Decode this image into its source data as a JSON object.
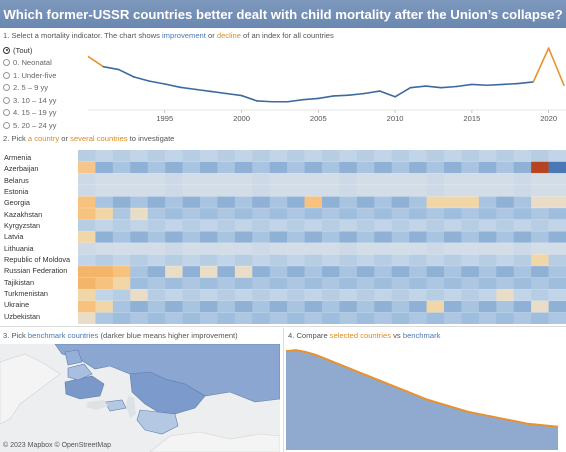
{
  "title": "Which former-USSR countries better dealt with child mortality after the Union’s collapse?",
  "section1": {
    "prefix": "1. Select a mortality indicator. The chart shows ",
    "improvement": "improvement",
    "or": " or ",
    "decline": "decline",
    "suffix": " of an index for all countries"
  },
  "indicators": [
    {
      "label": "(Tout)",
      "selected": true
    },
    {
      "label": "0. Neonatal",
      "selected": false
    },
    {
      "label": "1. Under-five",
      "selected": false
    },
    {
      "label": "2. 5 – 9 yy",
      "selected": false
    },
    {
      "label": "3. 10 – 14 yy",
      "selected": false
    },
    {
      "label": "4. 15 – 19 yy",
      "selected": false
    },
    {
      "label": "5. 20 – 24 yy",
      "selected": false
    }
  ],
  "chart_data": [
    {
      "type": "line",
      "x_ticks": [
        "1995",
        "2000",
        "2005",
        "2010",
        "2015",
        "2020"
      ],
      "xlim": [
        1990,
        2021
      ],
      "x": [
        1990,
        1991,
        1992,
        1993,
        1994,
        1995,
        1996,
        1997,
        1998,
        1999,
        2000,
        2001,
        2002,
        2003,
        2004,
        2005,
        2006,
        2007,
        2008,
        2009,
        2010,
        2011,
        2012,
        2013,
        2014,
        2015,
        2016,
        2017,
        2018,
        2019,
        2020,
        2021
      ],
      "values": [
        0.7,
        0.45,
        0.38,
        0.2,
        0.1,
        0.03,
        -0.05,
        -0.1,
        -0.15,
        -0.2,
        -0.25,
        -0.38,
        -0.4,
        -0.4,
        -0.35,
        -0.32,
        -0.26,
        -0.24,
        -0.2,
        -0.14,
        -0.28,
        -0.06,
        -0.02,
        -0.06,
        -0.03,
        0.02,
        0.0,
        0.02,
        0.04,
        0.08,
        0.9,
        0.0
      ],
      "ylim": [
        -0.6,
        1.0
      ]
    },
    {
      "type": "heatmap",
      "rows": [
        "Armenia",
        "Azerbaijan",
        "Belarus",
        "Estonia",
        "Georgia",
        "Kazakhstan",
        "Kyrgyzstan",
        "Latvia",
        "Lithuania",
        "Republic of Moldova",
        "Russian Federation",
        "Tajikistan",
        "Turkmenistan",
        "Ukraine",
        "Uzbekistan"
      ],
      "columns": 28
    },
    {
      "type": "area",
      "values": [
        0.98,
        0.99,
        0.97,
        0.94,
        0.9,
        0.86,
        0.82,
        0.78,
        0.74,
        0.7,
        0.66,
        0.62,
        0.58,
        0.54,
        0.5,
        0.47,
        0.44,
        0.41,
        0.38,
        0.36,
        0.34,
        0.32,
        0.3,
        0.28,
        0.26,
        0.25,
        0.24,
        0.23
      ],
      "ylim": [
        0,
        1.05
      ]
    }
  ],
  "section2": {
    "prefix": "2. Pick ",
    "a": "a ",
    "country": "country",
    "or": " or ",
    "several": "several countries",
    "suffix": " to investigate"
  },
  "section3": {
    "prefix": "3. Pick ",
    "benchmark": "benchmark countries",
    "suffix": " (darker blue means higher improvement)"
  },
  "section4": {
    "prefix": "4. Compare ",
    "selected": "selected countries",
    "vs": " vs ",
    "benchmark": "benchmark"
  },
  "map": {
    "attribution": "© 2023 Mapbox  © OpenStreetMap"
  },
  "colors": {
    "line_blue": "#3d6a9e",
    "orange": "#e8912d",
    "area_fill": "#8fa9cf",
    "map_dark": "#7c9acb",
    "map_light": "#b5c8e3"
  }
}
